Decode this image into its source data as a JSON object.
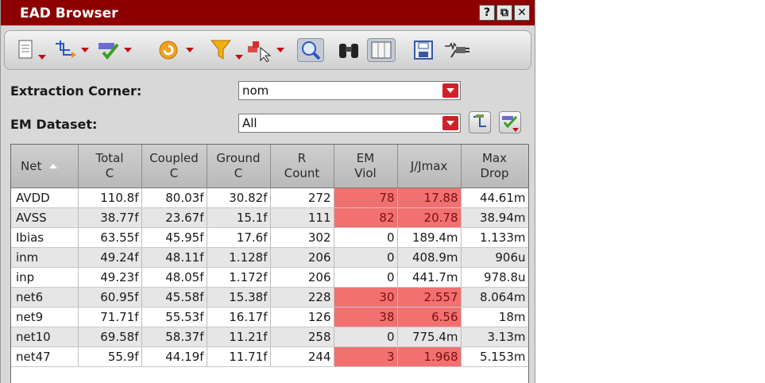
{
  "window": {
    "title": "EAD Browser",
    "help": "?",
    "restore": "⧉",
    "close": "✕"
  },
  "filters": {
    "extraction_label": "Extraction Corner:",
    "extraction_value": "nom",
    "dataset_label": "EM Dataset:",
    "dataset_value": "All"
  },
  "table": {
    "headers": [
      {
        "l1": "Net",
        "l2": ""
      },
      {
        "l1": "Total",
        "l2": "C"
      },
      {
        "l1": "Coupled",
        "l2": "C"
      },
      {
        "l1": "Ground",
        "l2": "C"
      },
      {
        "l1": "R",
        "l2": "Count"
      },
      {
        "l1": "EM",
        "l2": "Viol"
      },
      {
        "l1": "J/Jmax",
        "l2": ""
      },
      {
        "l1": "Max",
        "l2": "Drop"
      }
    ],
    "rows": [
      {
        "net": "AVDD",
        "total": "110.8f",
        "coupled": "80.03f",
        "ground": "30.82f",
        "rcount": "272",
        "emviol": "78",
        "jjmax": "17.88",
        "maxdrop": "44.61m"
      },
      {
        "net": "AVSS",
        "total": "38.77f",
        "coupled": "23.67f",
        "ground": "15.1f",
        "rcount": "111",
        "emviol": "82",
        "jjmax": "20.78",
        "maxdrop": "38.94m"
      },
      {
        "net": "Ibias",
        "total": "63.55f",
        "coupled": "45.95f",
        "ground": "17.6f",
        "rcount": "302",
        "emviol": "0",
        "jjmax": "189.4m",
        "maxdrop": "1.133m"
      },
      {
        "net": "inm",
        "total": "49.24f",
        "coupled": "48.11f",
        "ground": "1.128f",
        "rcount": "206",
        "emviol": "0",
        "jjmax": "408.9m",
        "maxdrop": "906u"
      },
      {
        "net": "inp",
        "total": "49.23f",
        "coupled": "48.05f",
        "ground": "1.172f",
        "rcount": "206",
        "emviol": "0",
        "jjmax": "441.7m",
        "maxdrop": "978.8u"
      },
      {
        "net": "net6",
        "total": "60.95f",
        "coupled": "45.58f",
        "ground": "15.38f",
        "rcount": "228",
        "emviol": "30",
        "jjmax": "2.557",
        "maxdrop": "8.064m"
      },
      {
        "net": "net9",
        "total": "71.71f",
        "coupled": "55.53f",
        "ground": "16.17f",
        "rcount": "126",
        "emviol": "38",
        "jjmax": "6.56",
        "maxdrop": "18m"
      },
      {
        "net": "net10",
        "total": "69.58f",
        "coupled": "58.37f",
        "ground": "11.21f",
        "rcount": "258",
        "emviol": "0",
        "jjmax": "775.4m",
        "maxdrop": "3.13m"
      },
      {
        "net": "net47",
        "total": "55.9f",
        "coupled": "44.19f",
        "ground": "11.71f",
        "rcount": "244",
        "emviol": "3",
        "jjmax": "1.968",
        "maxdrop": "5.153m"
      }
    ]
  },
  "colors": {
    "titlebar": "#8c0000",
    "violation": "#f37070",
    "accent_red": "#d0202a"
  },
  "icons": [
    "document-icon",
    "flow-icon",
    "check-filter-icon",
    "refresh-icon",
    "funnel-icon",
    "select-pointer-icon",
    "zoom-icon",
    "binoculars-icon",
    "layout-icon",
    "save-icon",
    "plug-icon"
  ]
}
